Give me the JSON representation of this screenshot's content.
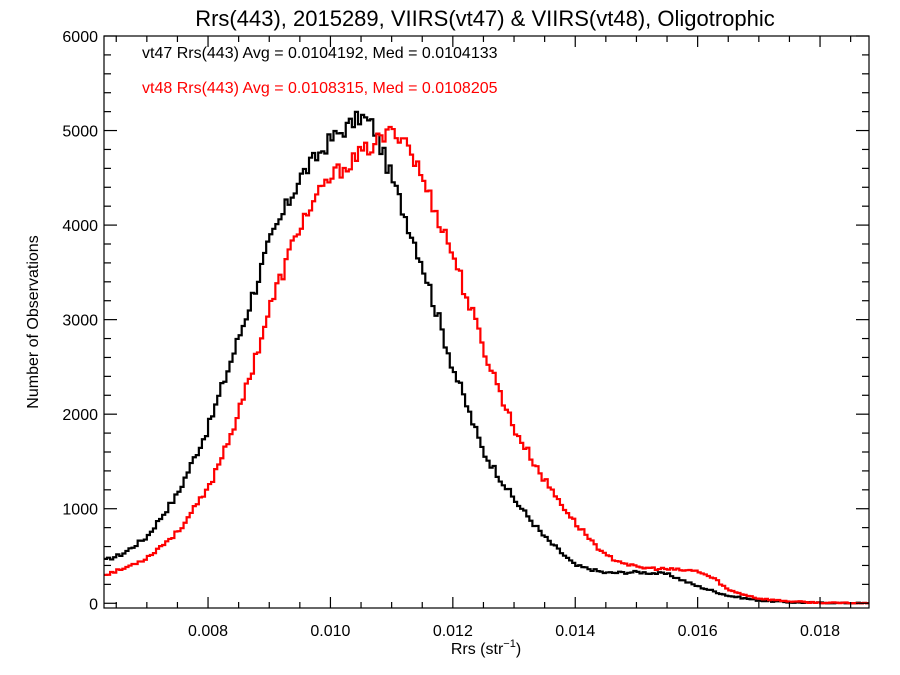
{
  "chart_data": {
    "type": "line",
    "title": "Rrs(443), 2015289, VIIRS(vt47) & VIIRS(vt48), Oligotrophic",
    "xlabel_base": "Rrs (str",
    "xlabel_sup": "−1",
    "xlabel_close": ")",
    "ylabel": "Number of Observations",
    "xlim": [
      0.0063,
      0.0188
    ],
    "ylim": [
      -50,
      6000
    ],
    "x_ticks": [
      0.008,
      0.01,
      0.012,
      0.014,
      0.016,
      0.018
    ],
    "x_tick_labels": [
      "0.008",
      "0.010",
      "0.012",
      "0.014",
      "0.016",
      "0.018"
    ],
    "y_ticks": [
      0,
      1000,
      2000,
      3000,
      4000,
      5000,
      6000
    ],
    "y_tick_labels": [
      "0",
      "1000",
      "2000",
      "3000",
      "4000",
      "5000",
      "6000"
    ],
    "grid": false,
    "series": [
      {
        "name": "vt47",
        "color": "#000000",
        "annotation": "vt47 Rrs(443) Avg = 0.0104192, Med = 0.0104133",
        "x": [
          0.0063,
          0.0066,
          0.007,
          0.0075,
          0.008,
          0.0085,
          0.009,
          0.0095,
          0.01,
          0.0103,
          0.0105,
          0.0107,
          0.011,
          0.0115,
          0.012,
          0.0125,
          0.013,
          0.0135,
          0.014,
          0.0145,
          0.015,
          0.0155,
          0.016,
          0.0165,
          0.017,
          0.0175,
          0.018,
          0.0188
        ],
        "values": [
          450,
          520,
          700,
          1150,
          1850,
          2800,
          3800,
          4500,
          4900,
          5050,
          5150,
          5050,
          4500,
          3600,
          2500,
          1600,
          1100,
          700,
          400,
          320,
          330,
          310,
          180,
          80,
          30,
          10,
          5,
          0
        ]
      },
      {
        "name": "vt48",
        "color": "#ff0000",
        "annotation": "vt48 Rrs(443) Avg = 0.0108315, Med = 0.0108205",
        "x": [
          0.0063,
          0.0066,
          0.007,
          0.0075,
          0.008,
          0.0085,
          0.009,
          0.0095,
          0.01,
          0.0105,
          0.0108,
          0.011,
          0.0112,
          0.0115,
          0.012,
          0.0125,
          0.013,
          0.0135,
          0.014,
          0.0145,
          0.015,
          0.0155,
          0.016,
          0.0163,
          0.0165,
          0.017,
          0.0175,
          0.018,
          0.0188
        ],
        "values": [
          300,
          360,
          480,
          750,
          1200,
          2000,
          3100,
          4000,
          4500,
          4750,
          4900,
          4980,
          4950,
          4500,
          3700,
          2700,
          1850,
          1300,
          850,
          500,
          380,
          360,
          340,
          250,
          140,
          50,
          20,
          5,
          0
        ]
      }
    ]
  }
}
